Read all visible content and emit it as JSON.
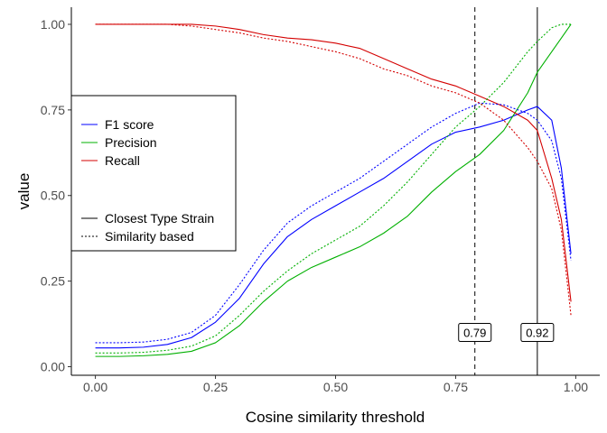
{
  "chart_data": {
    "type": "line",
    "xlabel": "Cosine similarity threshold",
    "ylabel": "value",
    "xlim": [
      -0.05,
      1.05
    ],
    "ylim": [
      -0.025,
      1.05
    ],
    "x_ticks": [
      "0.00",
      "0.25",
      "0.50",
      "0.75",
      "1.00"
    ],
    "x_tick_values": [
      0,
      0.25,
      0.5,
      0.75,
      1.0
    ],
    "y_ticks": [
      "0.00",
      "0.25",
      "0.50",
      "0.75",
      "1.00"
    ],
    "y_tick_values": [
      0,
      0.25,
      0.5,
      0.75,
      1.0
    ],
    "grid": false,
    "legend_position": "left",
    "legend_colour_items": [
      {
        "label": "F1 score",
        "color": "#0000ff"
      },
      {
        "label": "Precision",
        "color": "#00b000"
      },
      {
        "label": "Recall",
        "color": "#d40000"
      }
    ],
    "legend_linetype_items": [
      {
        "label": "Closest Type Strain",
        "dash": "solid"
      },
      {
        "label": "Similarity based",
        "dash": "dotted"
      }
    ],
    "x": [
      0.0,
      0.05,
      0.1,
      0.15,
      0.2,
      0.25,
      0.3,
      0.35,
      0.4,
      0.45,
      0.5,
      0.55,
      0.6,
      0.65,
      0.7,
      0.75,
      0.8,
      0.85,
      0.9,
      0.92,
      0.95,
      0.97,
      0.99
    ],
    "series": [
      {
        "name": "F1 score",
        "method": "Closest Type Strain",
        "color": "#0000ff",
        "dash": "solid",
        "values": [
          0.055,
          0.055,
          0.057,
          0.065,
          0.085,
          0.13,
          0.2,
          0.3,
          0.38,
          0.43,
          0.47,
          0.51,
          0.55,
          0.6,
          0.65,
          0.685,
          0.7,
          0.72,
          0.75,
          0.76,
          0.72,
          0.58,
          0.33
        ]
      },
      {
        "name": "Precision",
        "method": "Closest Type Strain",
        "color": "#00b000",
        "dash": "solid",
        "values": [
          0.03,
          0.03,
          0.032,
          0.036,
          0.045,
          0.07,
          0.12,
          0.19,
          0.25,
          0.29,
          0.32,
          0.35,
          0.39,
          0.44,
          0.51,
          0.57,
          0.62,
          0.69,
          0.8,
          0.86,
          0.92,
          0.96,
          1.0
        ]
      },
      {
        "name": "Recall",
        "method": "Closest Type Strain",
        "color": "#d40000",
        "dash": "solid",
        "values": [
          1.0,
          1.0,
          1.0,
          1.0,
          1.0,
          0.995,
          0.985,
          0.97,
          0.96,
          0.955,
          0.945,
          0.93,
          0.9,
          0.87,
          0.84,
          0.82,
          0.79,
          0.76,
          0.72,
          0.69,
          0.55,
          0.43,
          0.19
        ]
      },
      {
        "name": "F1 score",
        "method": "Similarity based",
        "color": "#0000ff",
        "dash": "dotted",
        "values": [
          0.07,
          0.07,
          0.072,
          0.08,
          0.1,
          0.15,
          0.24,
          0.34,
          0.42,
          0.47,
          0.51,
          0.55,
          0.6,
          0.65,
          0.7,
          0.74,
          0.77,
          0.765,
          0.74,
          0.72,
          0.66,
          0.55,
          0.31
        ]
      },
      {
        "name": "Precision",
        "method": "Similarity based",
        "color": "#00b000",
        "dash": "dotted",
        "values": [
          0.04,
          0.04,
          0.042,
          0.048,
          0.06,
          0.09,
          0.15,
          0.22,
          0.28,
          0.33,
          0.37,
          0.41,
          0.47,
          0.54,
          0.62,
          0.7,
          0.76,
          0.83,
          0.92,
          0.95,
          0.99,
          1.0,
          1.0
        ]
      },
      {
        "name": "Recall",
        "method": "Similarity based",
        "color": "#d40000",
        "dash": "dotted",
        "values": [
          1.0,
          1.0,
          1.0,
          1.0,
          0.995,
          0.985,
          0.975,
          0.96,
          0.95,
          0.935,
          0.92,
          0.9,
          0.87,
          0.85,
          0.82,
          0.8,
          0.77,
          0.72,
          0.64,
          0.6,
          0.52,
          0.4,
          0.15
        ]
      }
    ],
    "reference_lines": [
      {
        "x": 0.79,
        "label": "0.79",
        "dash": "dashed"
      },
      {
        "x": 0.92,
        "label": "0.92",
        "dash": "solid"
      }
    ]
  }
}
